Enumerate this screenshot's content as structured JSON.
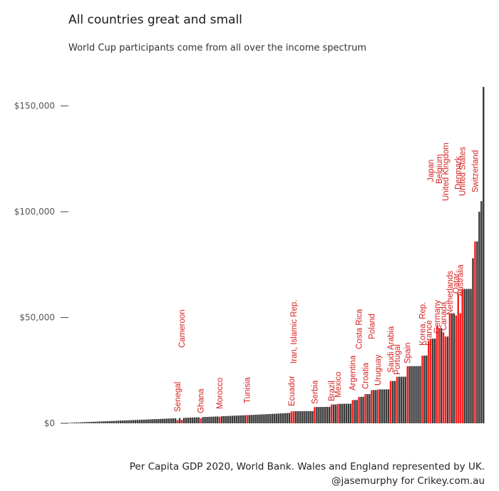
{
  "chart_data": {
    "type": "bar",
    "title": "All countries great and small",
    "subtitle": "World Cup participants come from all over the income spectrum",
    "caption_line1": "Per Capita GDP 2020, World Bank. Wales and England represented by UK.",
    "caption_line2": "@jasemurphy for Crikey.com.au",
    "ylim": [
      0,
      160000
    ],
    "y_ticks": [
      {
        "value": 0,
        "label": "$0"
      },
      {
        "value": 50000,
        "label": "$50,000"
      },
      {
        "value": 100000,
        "label": "$100,000"
      },
      {
        "value": 150000,
        "label": "$150,000"
      }
    ],
    "grid": false,
    "bar_count": 200,
    "colors": {
      "other": "#3a3a3a",
      "participant": "#ff1a1a",
      "label": "#d62020"
    },
    "participants": [
      {
        "name": "Senegal",
        "rank": 54,
        "value": 1500
      },
      {
        "name": "Cameroon",
        "rank": 56,
        "value": 1600
      },
      {
        "name": "Ghana",
        "rank": 65,
        "value": 2300
      },
      {
        "name": "Morocco",
        "rank": 74,
        "value": 3100
      },
      {
        "name": "Tunisia",
        "rank": 87,
        "value": 3900
      },
      {
        "name": "Ecuador",
        "rank": 108,
        "value": 5600
      },
      {
        "name": "Iran, Islamic Rep.",
        "rank": 109,
        "value": 5700
      },
      {
        "name": "Serbia",
        "rank": 119,
        "value": 7700
      },
      {
        "name": "Brazil",
        "rank": 127,
        "value": 8900
      },
      {
        "name": "Mexico",
        "rank": 130,
        "value": 9200
      },
      {
        "name": "Argentina",
        "rank": 137,
        "value": 11000
      },
      {
        "name": "Costa Rica",
        "rank": 140,
        "value": 12500
      },
      {
        "name": "Croatia",
        "rank": 143,
        "value": 13800
      },
      {
        "name": "Poland",
        "rank": 146,
        "value": 15700
      },
      {
        "name": "Uruguay",
        "rank": 149,
        "value": 16000
      },
      {
        "name": "Saudi Arabia",
        "rank": 155,
        "value": 20000
      },
      {
        "name": "Portugal",
        "rank": 158,
        "value": 22000
      },
      {
        "name": "Spain",
        "rank": 163,
        "value": 27000
      },
      {
        "name": "Korea, Rep.",
        "rank": 170,
        "value": 32000
      },
      {
        "name": "France",
        "rank": 173,
        "value": 39000
      },
      {
        "name": "Japan",
        "rank": 174,
        "value": 40000
      },
      {
        "name": "Germany",
        "rank": 177,
        "value": 46000
      },
      {
        "name": "Belgium",
        "rank": 178,
        "value": 45000
      },
      {
        "name": "Canada",
        "rank": 180,
        "value": 43000
      },
      {
        "name": "United Kingdom",
        "rank": 181,
        "value": 41000
      },
      {
        "name": "Netherlands",
        "rank": 183,
        "value": 52000
      },
      {
        "name": "Qatar",
        "rank": 186,
        "value": 51000
      },
      {
        "name": "Denmark",
        "rank": 187,
        "value": 61000
      },
      {
        "name": "Australia",
        "rank": 188,
        "value": 52000
      },
      {
        "name": "United States",
        "rank": 189,
        "value": 63500
      },
      {
        "name": "Switzerland",
        "rank": 195,
        "value": 85900
      }
    ]
  }
}
